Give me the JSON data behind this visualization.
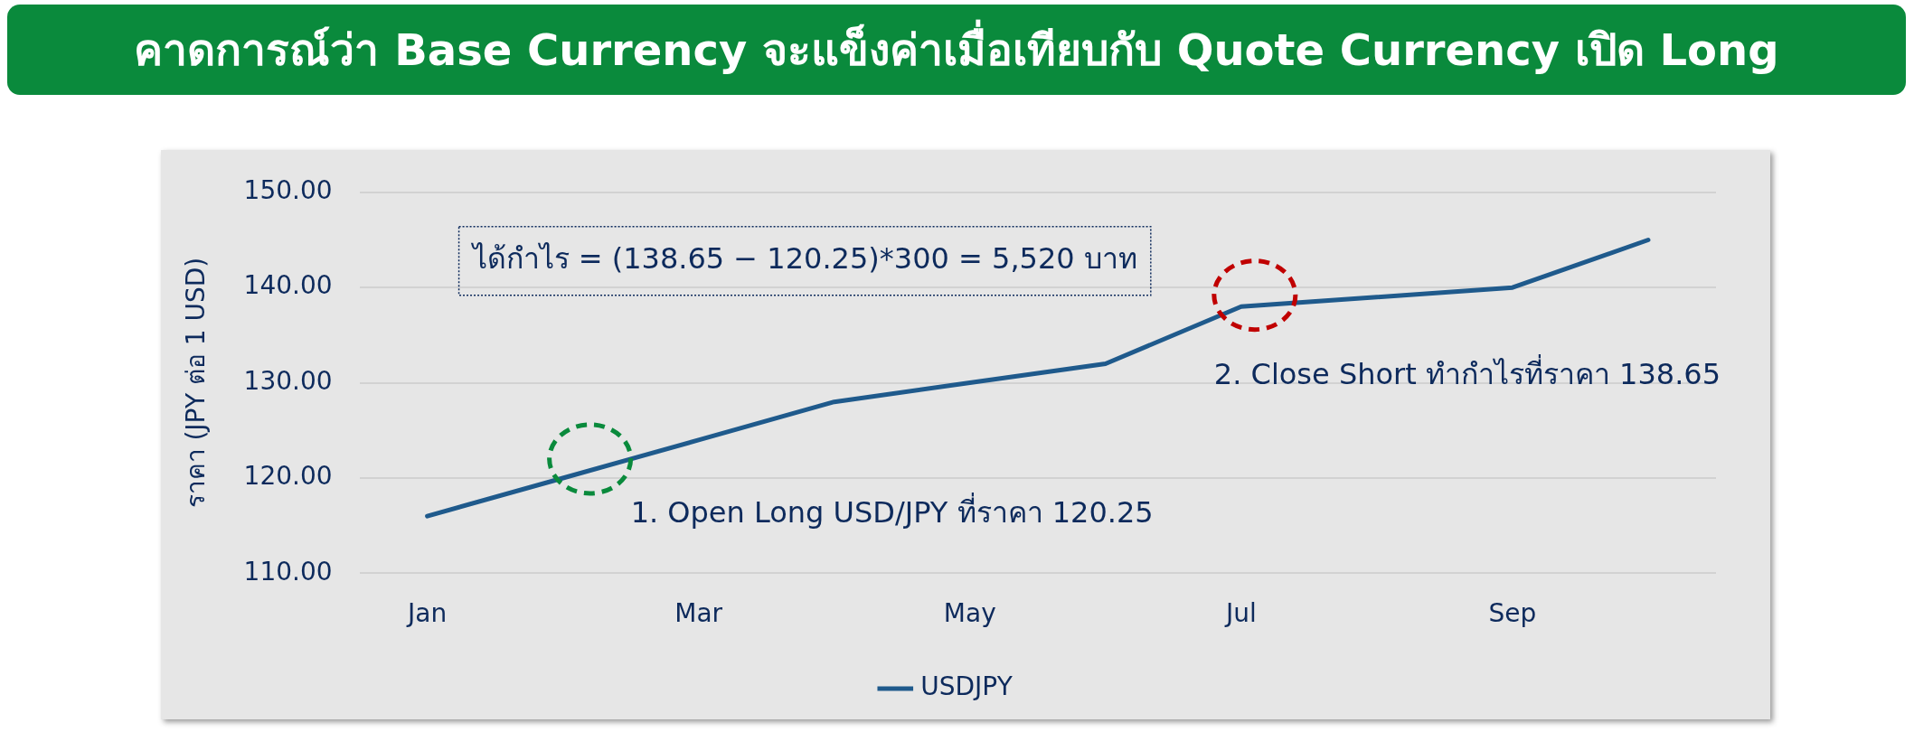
{
  "chart_data": {
    "type": "line",
    "title": "คาดการณ์ว่า Base Currency จะแข็งค่าเมื่อเทียบกับ Quote Currency เปิด Long",
    "ylabel": "ราคา (JPY ต่อ 1 USD)",
    "categories": [
      "Jan",
      null,
      "Mar",
      null,
      "May",
      null,
      "Jul",
      null,
      "Sep",
      null
    ],
    "series": [
      {
        "name": "USDJPY",
        "color": "#1f5a8c",
        "values": [
          116,
          120,
          124,
          128,
          130,
          132,
          138,
          139,
          140,
          145
        ]
      }
    ],
    "ylim": [
      110,
      150
    ],
    "yticks": [
      {
        "value": 110,
        "label": "110.00"
      },
      {
        "value": 120,
        "label": "120.00"
      },
      {
        "value": 130,
        "label": "130.00"
      },
      {
        "value": 140,
        "label": "140.00"
      },
      {
        "value": 150,
        "label": "150.00"
      }
    ],
    "grid": "y",
    "legend": "bottom",
    "marker": "none",
    "line_style": "solid",
    "annotations": [
      "ได้กำไร = (138.65 − 120.25)*300 = 5,520 บาท",
      "1. Open Long USD/JPY ที่ราคา 120.25",
      "2. Close Short ทำกำไรที่ราคา 138.65"
    ]
  }
}
